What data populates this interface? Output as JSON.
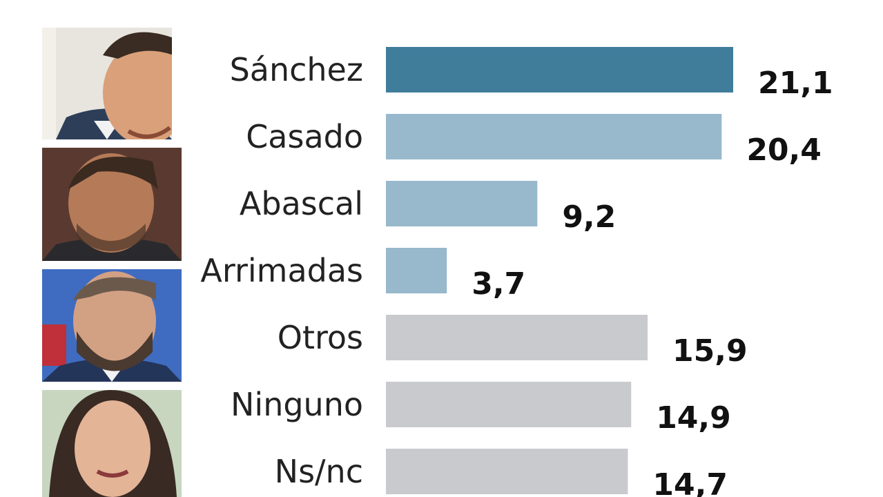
{
  "header": {
    "partial_title": ""
  },
  "photos": [
    {
      "subject": "person-photo",
      "skin": "#d9a07a",
      "hair": "#3a2c22",
      "suit": "#2d3e58",
      "bg": "#e8e4de"
    },
    {
      "subject": "person-photo",
      "skin": "#b57a58",
      "hair": "#3b2a20",
      "suit": "#2a2a2e",
      "bg": "#5a3a30"
    },
    {
      "subject": "person-photo",
      "skin": "#d2a184",
      "hair": "#6b5a4c",
      "suit": "#24355a",
      "bg": "#3f6cc0"
    },
    {
      "subject": "person-photo",
      "skin": "#e3b496",
      "hair": "#3a2a24",
      "suit": "#ffffff",
      "bg": "#c8d6c0"
    }
  ],
  "chart_data": {
    "type": "bar",
    "orientation": "horizontal",
    "categories": [
      "Sánchez",
      "Casado",
      "Abascal",
      "Arrimadas",
      "Otros",
      "Ninguno",
      "Ns/nc"
    ],
    "values": [
      21.1,
      20.4,
      9.2,
      3.7,
      15.9,
      14.9,
      14.7
    ],
    "value_labels": [
      "21,1",
      "20,4",
      "9,2",
      "3,7",
      "15,9",
      "14,9",
      "14,7"
    ],
    "bar_colors": [
      "#3f7d9b",
      "#98b8cc",
      "#98b8cc",
      "#98b8cc",
      "#c9cacd",
      "#c9cacd",
      "#c9cacd"
    ],
    "xlim": [
      0,
      21.1
    ],
    "grid": false,
    "legend": "none"
  }
}
